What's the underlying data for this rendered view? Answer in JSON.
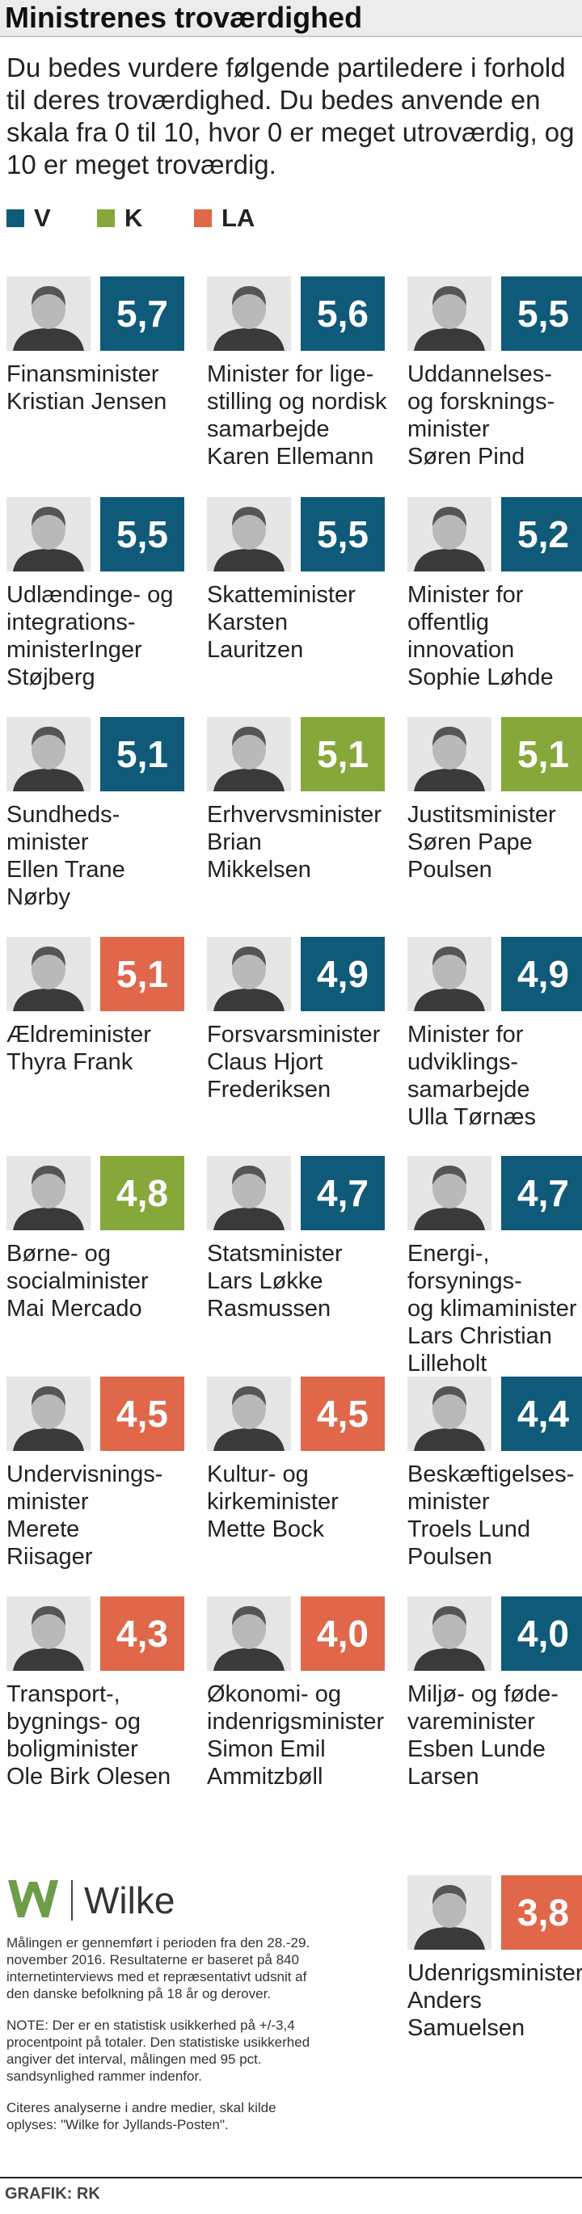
{
  "header": {
    "title": "Ministrenes troværdighed",
    "subtitle": "Du bedes vurdere følgende partiledere i forhold til deres troværdighed. Du bedes anvende en skala fra 0 til 10, hvor 0 er meget utroværdig, og 10 er meget troværdig."
  },
  "legend": [
    {
      "label": "V",
      "color": "#0f5a78"
    },
    {
      "label": "K",
      "color": "#86a83b"
    },
    {
      "label": "LA",
      "color": "#e0674a"
    }
  ],
  "chart_data": {
    "type": "table",
    "title": "Ministrenes troværdighed",
    "party_colors": {
      "V": "#0f5a78",
      "K": "#86a83b",
      "LA": "#e0674a"
    },
    "ministers": [
      {
        "title": "Finansminister",
        "name": "Kristian Jensen",
        "caption": "Finansminister\nKristian Jensen",
        "party": "V",
        "score": 5.7,
        "score_label": "5,7"
      },
      {
        "title": "Minister for ligestilling og nordisk samarbejde",
        "name": "Karen Ellemann",
        "caption": "Minister for lige-\nstilling og nordisk\nsamarbejde\nKaren Ellemann",
        "party": "V",
        "score": 5.6,
        "score_label": "5,6"
      },
      {
        "title": "Uddannelses- og forskningsminister",
        "name": "Søren Pind",
        "caption": "Uddannelses-\nog forsknings-\nminister\nSøren Pind",
        "party": "V",
        "score": 5.5,
        "score_label": "5,5"
      },
      {
        "title": "Udlændinge- og integrationsminister",
        "name": "Inger Støjberg",
        "caption": "Udlændinge- og\nintegrations-\nministerInger\nStøjberg",
        "party": "V",
        "score": 5.5,
        "score_label": "5,5"
      },
      {
        "title": "Skatteminister",
        "name": "Karsten Lauritzen",
        "caption": "Skatteminister\nKarsten\nLauritzen",
        "party": "V",
        "score": 5.5,
        "score_label": "5,5"
      },
      {
        "title": "Minister for offentlig innovation",
        "name": "Sophie Løhde",
        "caption": "Minister for\noffentlig\ninnovation\nSophie Løhde",
        "party": "V",
        "score": 5.2,
        "score_label": "5,2"
      },
      {
        "title": "Sundhedsminister",
        "name": "Ellen Trane Nørby",
        "caption": "Sundheds-\nminister\nEllen Trane\nNørby",
        "party": "V",
        "score": 5.1,
        "score_label": "5,1"
      },
      {
        "title": "Erhvervsminister",
        "name": "Brian Mikkelsen",
        "caption": "Erhvervsminister\nBrian\nMikkelsen",
        "party": "K",
        "score": 5.1,
        "score_label": "5,1"
      },
      {
        "title": "Justitsminister",
        "name": "Søren Pape Poulsen",
        "caption": "Justitsminister\nSøren Pape\nPoulsen",
        "party": "K",
        "score": 5.1,
        "score_label": "5,1"
      },
      {
        "title": "Ældreminister",
        "name": "Thyra Frank",
        "caption": "Ældreminister\nThyra Frank",
        "party": "LA",
        "score": 5.1,
        "score_label": "5,1"
      },
      {
        "title": "Forsvarsminister",
        "name": "Claus Hjort Frederiksen",
        "caption": "Forsvarsminister\nClaus Hjort\nFrederiksen",
        "party": "V",
        "score": 4.9,
        "score_label": "4,9"
      },
      {
        "title": "Minister for udviklingssamarbejde",
        "name": "Ulla Tørnæs",
        "caption": "Minister for\nudviklings-\nsamarbejde\nUlla Tørnæs",
        "party": "V",
        "score": 4.9,
        "score_label": "4,9"
      },
      {
        "title": "Børne- og socialminister",
        "name": "Mai Mercado",
        "caption": "Børne- og\nsocialminister\nMai Mercado",
        "party": "K",
        "score": 4.8,
        "score_label": "4,8"
      },
      {
        "title": "Statsminister",
        "name": "Lars Løkke Rasmussen",
        "caption": "Statsminister\nLars Løkke\nRasmussen",
        "party": "V",
        "score": 4.7,
        "score_label": "4,7"
      },
      {
        "title": "Energi-, forsynings- og klimaminister",
        "name": "Lars Christian Lilleholt",
        "caption": "Energi-,\nforsynings-\nog klimaminister\nLars Christian\nLilleholt",
        "party": "V",
        "score": 4.7,
        "score_label": "4,7"
      },
      {
        "title": "Undervisningsminister",
        "name": "Merete Riisager",
        "caption": "Undervisnings-\nminister\nMerete\nRiisager",
        "party": "LA",
        "score": 4.5,
        "score_label": "4,5"
      },
      {
        "title": "Kultur- og kirkeminister",
        "name": "Mette Bock",
        "caption": "Kultur- og\nkirkeminister\nMette Bock",
        "party": "LA",
        "score": 4.5,
        "score_label": "4,5"
      },
      {
        "title": "Beskæftigelsesminister",
        "name": "Troels Lund Poulsen",
        "caption": "Beskæftigelses-\nminister\nTroels Lund\nPoulsen",
        "party": "V",
        "score": 4.4,
        "score_label": "4,4"
      },
      {
        "title": "Transport-, bygnings- og boligminister",
        "name": "Ole Birk Olesen",
        "caption": "Transport-,\nbygnings- og\nboligminister\nOle Birk Olesen",
        "party": "LA",
        "score": 4.3,
        "score_label": "4,3"
      },
      {
        "title": "Økonomi- og indenrigsminister",
        "name": "Simon Emil Ammitzbøll",
        "caption": "Økonomi- og\nindenrigsminister\nSimon Emil\nAmmitzbøll",
        "party": "LA",
        "score": 4.0,
        "score_label": "4,0"
      },
      {
        "title": "Miljø- og fødevareminister",
        "name": "Esben Lunde Larsen",
        "caption": "Miljø- og føde-\nvareminister\nEsben Lunde\nLarsen",
        "party": "V",
        "score": 4.0,
        "score_label": "4,0"
      },
      {
        "title": "Udenrigsminister",
        "name": "Anders Samuelsen",
        "caption": "Udenrigsminister\nAnders\nSamuelsen",
        "party": "LA",
        "score": 3.8,
        "score_label": "3,8"
      }
    ]
  },
  "logo": {
    "text": "Wilke",
    "mark_color": "#6e9d4a"
  },
  "notes": {
    "method": "Målingen er gennemført i perioden fra den 28.-29. november 2016. Resultaterne er baseret på 840 internetinterviews med et repræsentativt udsnit af den danske befolkning på 18 år og derover.",
    "note": "NOTE: Der er en statistisk usikkerhed på +/-3,4 procentpoint på totaler. Den statistiske usikkerhed angiver det interval, målingen med 95 pct. sandsynlighed rammer indenfor.",
    "citation": "Citeres analyserne i andre medier, skal kilde oplyses: \"Wilke for Jyllands-Posten\"."
  },
  "credit": "GRAFIK: RK"
}
